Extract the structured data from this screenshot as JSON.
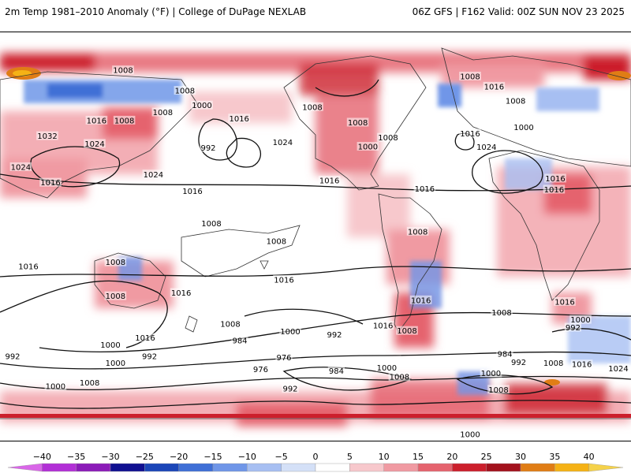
{
  "header": {
    "title": "2m Temp 1981–2010 Anomaly (°F) | College of DuPage NEXLAB",
    "run_info": "06Z GFS | F162 Valid: 00Z SUN NOV 23 2025"
  },
  "map": {
    "field": "2m temperature anomaly",
    "contours": "mean sea level pressure (mb)",
    "labels": [
      {
        "t": "1008",
        "lx": 0.195,
        "ly": 0.093
      },
      {
        "t": "1008",
        "lx": 0.293,
        "ly": 0.143
      },
      {
        "t": "1008",
        "lx": 0.258,
        "ly": 0.196
      },
      {
        "t": "1000",
        "lx": 0.32,
        "ly": 0.179
      },
      {
        "t": "1016",
        "lx": 0.153,
        "ly": 0.216
      },
      {
        "t": "1008",
        "lx": 0.197,
        "ly": 0.216
      },
      {
        "t": "1016",
        "lx": 0.379,
        "ly": 0.211
      },
      {
        "t": "992",
        "lx": 0.33,
        "ly": 0.283
      },
      {
        "t": "1024",
        "lx": 0.15,
        "ly": 0.273
      },
      {
        "t": "1032",
        "lx": 0.075,
        "ly": 0.254
      },
      {
        "t": "1024",
        "lx": 0.448,
        "ly": 0.269
      },
      {
        "t": "1024",
        "lx": 0.033,
        "ly": 0.33
      },
      {
        "t": "1016",
        "lx": 0.08,
        "ly": 0.368
      },
      {
        "t": "1024",
        "lx": 0.243,
        "ly": 0.348
      },
      {
        "t": "1016",
        "lx": 0.305,
        "ly": 0.389
      },
      {
        "t": "1008",
        "lx": 0.495,
        "ly": 0.183
      },
      {
        "t": "1008",
        "lx": 0.567,
        "ly": 0.221
      },
      {
        "t": "1008",
        "lx": 0.615,
        "ly": 0.258
      },
      {
        "t": "1000",
        "lx": 0.583,
        "ly": 0.28
      },
      {
        "t": "1016",
        "lx": 0.522,
        "ly": 0.363
      },
      {
        "t": "1016",
        "lx": 0.673,
        "ly": 0.383
      },
      {
        "t": "1008",
        "lx": 0.745,
        "ly": 0.108
      },
      {
        "t": "1016",
        "lx": 0.783,
        "ly": 0.133
      },
      {
        "t": "1008",
        "lx": 0.817,
        "ly": 0.168
      },
      {
        "t": "1016",
        "lx": 0.745,
        "ly": 0.248
      },
      {
        "t": "1000",
        "lx": 0.83,
        "ly": 0.233
      },
      {
        "t": "1024",
        "lx": 0.771,
        "ly": 0.281
      },
      {
        "t": "1016",
        "lx": 0.88,
        "ly": 0.358
      },
      {
        "t": "1016",
        "lx": 0.878,
        "ly": 0.385
      },
      {
        "t": "1008",
        "lx": 0.335,
        "ly": 0.468
      },
      {
        "t": "1008",
        "lx": 0.438,
        "ly": 0.512
      },
      {
        "t": "1008",
        "lx": 0.183,
        "ly": 0.563
      },
      {
        "t": "1016",
        "lx": 0.045,
        "ly": 0.573
      },
      {
        "t": "1008",
        "lx": 0.183,
        "ly": 0.646
      },
      {
        "t": "1016",
        "lx": 0.287,
        "ly": 0.638
      },
      {
        "t": "1016",
        "lx": 0.45,
        "ly": 0.606
      },
      {
        "t": "1008",
        "lx": 0.662,
        "ly": 0.488
      },
      {
        "t": "1016",
        "lx": 0.667,
        "ly": 0.656
      },
      {
        "t": "1016",
        "lx": 0.895,
        "ly": 0.66
      },
      {
        "t": "1008",
        "lx": 0.795,
        "ly": 0.686
      },
      {
        "t": "1008",
        "lx": 0.365,
        "ly": 0.714
      },
      {
        "t": "1016",
        "lx": 0.23,
        "ly": 0.748
      },
      {
        "t": "1000",
        "lx": 0.46,
        "ly": 0.733
      },
      {
        "t": "992",
        "lx": 0.53,
        "ly": 0.74
      },
      {
        "t": "1016",
        "lx": 0.607,
        "ly": 0.718
      },
      {
        "t": "1008",
        "lx": 0.645,
        "ly": 0.731
      },
      {
        "t": "984",
        "lx": 0.38,
        "ly": 0.755
      },
      {
        "t": "976",
        "lx": 0.45,
        "ly": 0.796
      },
      {
        "t": "1000",
        "lx": 0.175,
        "ly": 0.765
      },
      {
        "t": "992",
        "lx": 0.237,
        "ly": 0.793
      },
      {
        "t": "1000",
        "lx": 0.183,
        "ly": 0.81
      },
      {
        "t": "1008",
        "lx": 0.142,
        "ly": 0.858
      },
      {
        "t": "1000",
        "lx": 0.088,
        "ly": 0.867
      },
      {
        "t": "992",
        "lx": 0.02,
        "ly": 0.793
      },
      {
        "t": "976",
        "lx": 0.413,
        "ly": 0.825
      },
      {
        "t": "984",
        "lx": 0.533,
        "ly": 0.829
      },
      {
        "t": "1000",
        "lx": 0.613,
        "ly": 0.821
      },
      {
        "t": "1008",
        "lx": 0.633,
        "ly": 0.844
      },
      {
        "t": "992",
        "lx": 0.46,
        "ly": 0.873
      },
      {
        "t": "1008",
        "lx": 0.79,
        "ly": 0.875
      },
      {
        "t": "1000",
        "lx": 0.745,
        "ly": 0.985
      },
      {
        "t": "1000",
        "lx": 0.92,
        "ly": 0.704
      },
      {
        "t": "992",
        "lx": 0.908,
        "ly": 0.723
      },
      {
        "t": "984",
        "lx": 0.8,
        "ly": 0.788
      },
      {
        "t": "992",
        "lx": 0.822,
        "ly": 0.808
      },
      {
        "t": "1000",
        "lx": 0.778,
        "ly": 0.835
      },
      {
        "t": "1008",
        "lx": 0.877,
        "ly": 0.81
      },
      {
        "t": "1016",
        "lx": 0.922,
        "ly": 0.813
      },
      {
        "t": "1024",
        "lx": 0.98,
        "ly": 0.823
      }
    ]
  },
  "colorbar": {
    "ticks": [
      "−40",
      "−35",
      "−30",
      "−25",
      "−20",
      "−15",
      "−10",
      "−5",
      "0",
      "5",
      "10",
      "15",
      "20",
      "25",
      "30",
      "35",
      "40"
    ],
    "colors": [
      "#d966e8",
      "#b22fd6",
      "#8b1bb8",
      "#101091",
      "#1b46b8",
      "#3f6fd6",
      "#6f96e8",
      "#a7bff2",
      "#d4e0f7",
      "#ffffff",
      "#f7c8cc",
      "#f09aa2",
      "#e5636e",
      "#cc1f2c",
      "#a3121d",
      "#e07d15",
      "#f5b215",
      "#f5d24a"
    ]
  }
}
